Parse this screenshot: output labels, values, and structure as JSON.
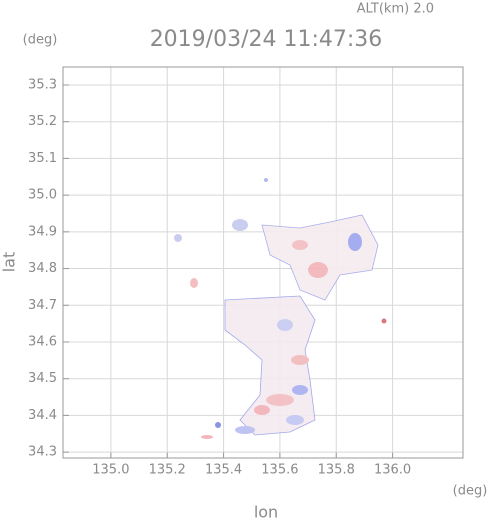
{
  "chart_data": {
    "type": "radar-map",
    "title": "2019/03/24 11:47:36",
    "subtitle": "ALT(km)  2.0",
    "x_label": "lon",
    "y_label": "lat",
    "x_unit": "(deg)",
    "y_unit": "(deg)",
    "xlim": [
      134.83,
      136.25
    ],
    "ylim": [
      34.284,
      35.349
    ],
    "xticks": [
      {
        "value": 135,
        "label": "135.0"
      },
      135.2,
      135.4,
      135.6,
      135.8,
      {
        "value": 136,
        "label": "136.0"
      }
    ],
    "yticks": [
      34.3,
      34.4,
      34.5,
      34.6,
      34.7,
      34.8,
      34.9,
      {
        "value": 35,
        "label": "35.0"
      },
      35.1,
      35.2,
      35.3
    ],
    "grid": true
  }
}
